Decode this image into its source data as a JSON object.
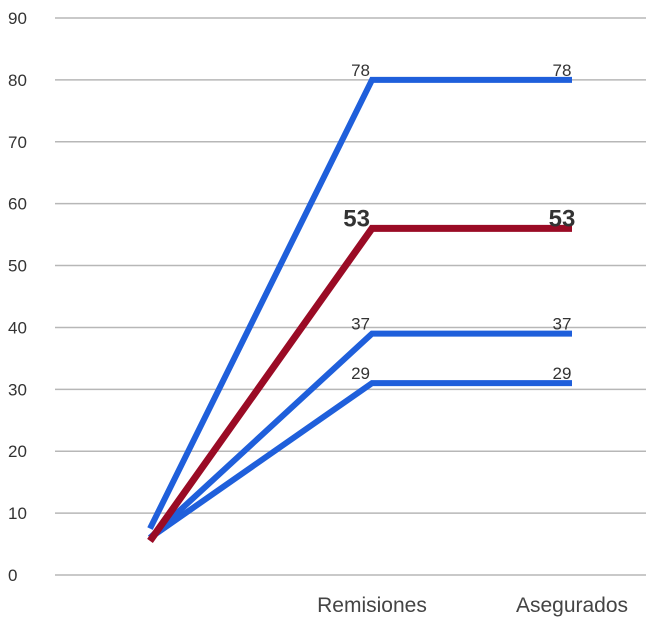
{
  "chart_data": {
    "type": "line",
    "title": "",
    "xlabel": "",
    "ylabel": "",
    "categories": [
      "",
      "Remisiones",
      "Asegurados"
    ],
    "ylim": [
      0,
      90
    ],
    "yticks": [
      "0",
      "10",
      "20",
      "30",
      "40",
      "50",
      "60",
      "70",
      "80",
      "90"
    ],
    "grid": true,
    "series": [
      {
        "values": [
          7.5,
          80,
          80
        ],
        "labels": [
          "",
          "78",
          "78"
        ],
        "color": "#1f5fdb",
        "emphasis": false
      },
      {
        "values": [
          6,
          39,
          39
        ],
        "labels": [
          "",
          "37",
          "37"
        ],
        "color": "#1f5fdb",
        "emphasis": false
      },
      {
        "values": [
          6,
          31,
          31
        ],
        "labels": [
          "",
          "29",
          "29"
        ],
        "color": "#1f5fdb",
        "emphasis": false
      },
      {
        "values": [
          5.5,
          56,
          56
        ],
        "labels": [
          "",
          "53",
          "53"
        ],
        "color": "#9a0b25",
        "emphasis": true
      }
    ]
  }
}
